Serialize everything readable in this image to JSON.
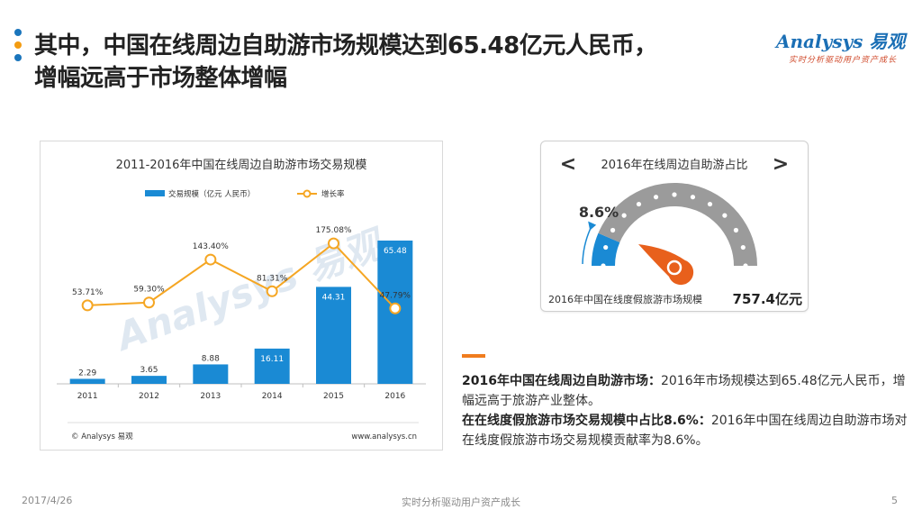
{
  "header": {
    "title_line1": "其中，中国在线周边自助游市场规模达到65.48亿元人民币，",
    "title_line2": "增幅远高于市场整体增幅",
    "bullet_colors": [
      "#1a75bc",
      "#f39c12",
      "#1a75bc"
    ]
  },
  "logo": {
    "main": "Analysys 易观",
    "sub": "实时分析驱动用户资产成长"
  },
  "chart": {
    "title": "2011-2016年中国在线周边自助游市场交易规模",
    "footer_left": "© Analysys 易观",
    "footer_right": "www.analysys.cn",
    "watermark": "Analysys 易观"
  },
  "chart_data": {
    "type": "bar",
    "title": "2011-2016年中国在线周边自助游市场交易规模",
    "categories": [
      "2011",
      "2012",
      "2013",
      "2014",
      "2015",
      "2016"
    ],
    "series": [
      {
        "name": "交易规模（亿元 人民币）",
        "type": "bar",
        "axis": "left",
        "color": "#1a8ad4",
        "values": [
          2.29,
          3.65,
          8.88,
          16.11,
          44.31,
          65.48
        ],
        "labels": [
          "2.29",
          "3.65",
          "8.88",
          "16.11",
          "44.31",
          "65.48"
        ]
      },
      {
        "name": "增长率",
        "type": "line",
        "axis": "right",
        "color": "#f5a623",
        "values": [
          53.71,
          59.3,
          143.4,
          81.31,
          175.08,
          47.79
        ],
        "labels": [
          "53.71%",
          "59.30%",
          "143.40%",
          "81.31%",
          "175.08%",
          "47.79%"
        ]
      }
    ],
    "ylim": [
      0,
      70
    ],
    "y2lim": [
      -100,
      200
    ],
    "grid": false,
    "legend": "top"
  },
  "gauge": {
    "title": "2016年在线周边自助游占比",
    "prev_label": "<",
    "next_label": ">",
    "percent_label": "8.6%",
    "value": 0.086,
    "caption": "2016年中国在线度假旅游市场规模",
    "caption_value": "757.4亿元",
    "fill_color": "#1a8ad4",
    "track_color": "#9b9b9b",
    "needle_color": "#e8601c"
  },
  "summary": {
    "accent_color": "#f07c1e",
    "p1_bold": "2016年中国在线周边自助游市场：",
    "p1_text": "2016年市场规模达到65.48亿元人民币，增幅远高于旅游产业整体。",
    "p2_bold": "在在线度假旅游市场交易规模中占比8.6%：",
    "p2_text": "2016年中国在线周边自助游市场对在线度假旅游市场交易规模贡献率为8.6%。"
  },
  "footer": {
    "date": "2017/4/26",
    "slogan": "实时分析驱动用户资产成长",
    "page": "5"
  }
}
